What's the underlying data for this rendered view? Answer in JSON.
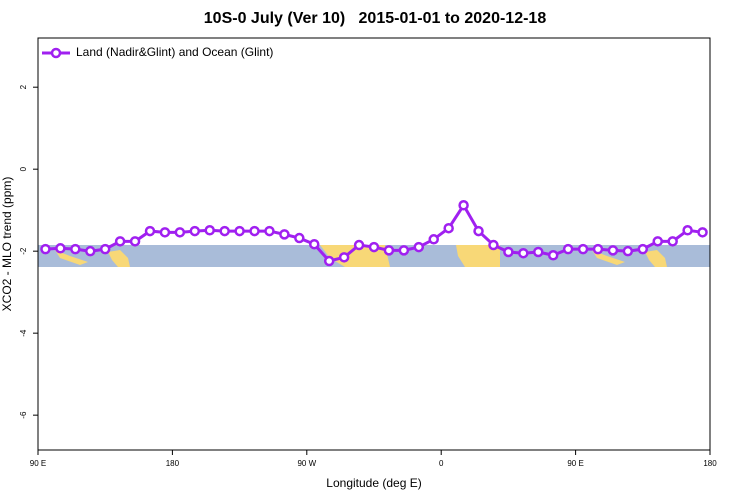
{
  "chart_data": {
    "type": "line",
    "title": "10S-0 July (Ver 10)   2015-01-01 to 2020-12-18",
    "x_label": "Longitude (deg E)",
    "y_label": "XCO2 - MLO trend (ppm)",
    "x": [
      95,
      105,
      115,
      125,
      135,
      145,
      155,
      165,
      175,
      185,
      195,
      205,
      215,
      225,
      235,
      245,
      255,
      265,
      275,
      285,
      295,
      305,
      315,
      325,
      335,
      345,
      355,
      365,
      375,
      385,
      395,
      405,
      415,
      425,
      435,
      445,
      455,
      465,
      475,
      485,
      495,
      505,
      515,
      525,
      535
    ],
    "series": [
      {
        "name": "Land (Nadir&Glint) and Ocean (Glint)",
        "color": "#a020f0",
        "values": [
          -1.95,
          -1.93,
          -1.95,
          -2.0,
          -1.95,
          -1.76,
          -1.76,
          -1.51,
          -1.54,
          -1.54,
          -1.51,
          -1.49,
          -1.51,
          -1.51,
          -1.51,
          -1.51,
          -1.59,
          -1.68,
          -1.83,
          -2.24,
          -2.15,
          -1.85,
          -1.9,
          -1.98,
          -1.98,
          -1.9,
          -1.71,
          -1.44,
          -0.88,
          -1.51,
          -1.85,
          -2.02,
          -2.05,
          -2.02,
          -2.1,
          -1.95,
          -1.95,
          -1.95,
          -1.98,
          -2.0,
          -1.95,
          -1.76,
          -1.76,
          -1.49,
          -1.54
        ]
      }
    ],
    "xlim": [
      90,
      540
    ],
    "xticks": [
      {
        "value": 90,
        "label": "90 E"
      },
      {
        "value": 180,
        "label": "180"
      },
      {
        "value": 270,
        "label": "90 W"
      },
      {
        "value": 360,
        "label": "0"
      },
      {
        "value": 450,
        "label": "90 E"
      },
      {
        "value": 540,
        "label": "180"
      }
    ],
    "ylim": [
      -6.85,
      3.2
    ],
    "yticks": [
      2,
      0,
      -2,
      -4,
      -6
    ],
    "legend": "top-left"
  }
}
